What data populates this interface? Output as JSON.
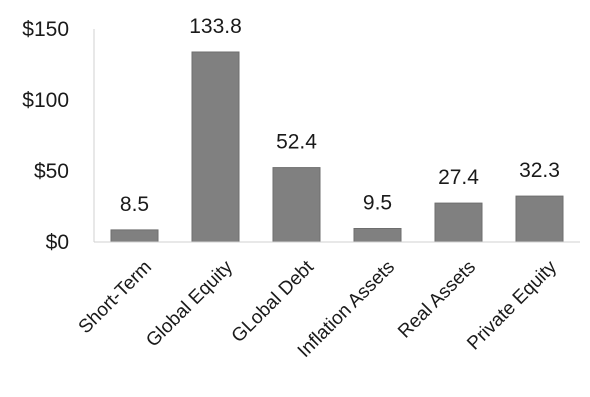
{
  "chart_data": {
    "type": "bar",
    "categories": [
      "Short-Term",
      "Global Equity",
      "GLobal Debt",
      "Inflation Assets",
      "Real Assets",
      "Private Equity"
    ],
    "values": [
      8.5,
      133.8,
      52.4,
      9.5,
      27.4,
      32.3
    ],
    "data_labels": [
      "8.5",
      "133.8",
      "52.4",
      "9.5",
      "27.4",
      "32.3"
    ],
    "title": "",
    "xlabel": "",
    "ylabel": "",
    "ylim": [
      0,
      150
    ],
    "yticks": [
      0,
      50,
      100,
      150
    ],
    "ytick_labels": [
      "$0",
      "$50",
      "$100",
      "$150"
    ],
    "grid": false,
    "legend": "none",
    "colors": {
      "bar": "#808080",
      "bar_edge": "#6e6e6e",
      "axis": "#d0d0d0"
    }
  }
}
